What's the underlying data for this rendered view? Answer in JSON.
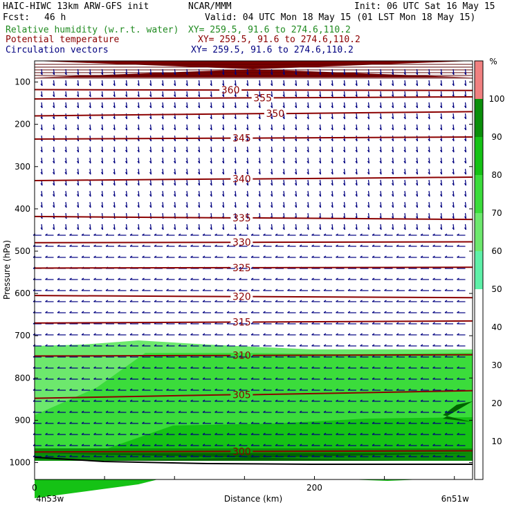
{
  "header": {
    "model": "HAIC-HIWC 13km ARW-GFS init",
    "org": "NCAR/MMM",
    "init": "Init: 06 UTC Sat 16 May 15",
    "fcst_label": "Fcst:",
    "fcst_value": "46 h",
    "valid": "Valid: 04 UTC Mon 18 May 15 (01 LST Mon 18 May 15)",
    "field1": "Relative humidity (w.r.t. water)",
    "field2": "Potential temperature",
    "field3": "Circulation vectors",
    "xy1": "XY= 259.5, 91.6 to 274.6,110.2",
    "xy2": "XY= 259.5, 91.6 to 274.6,110.2",
    "xy3": "XY= 259.5, 91.6 to 274.6,110.2"
  },
  "colors": {
    "rh_scale": [
      "#ffffff",
      "#5ef0a8",
      "#6de86d",
      "#3bdc3b",
      "#15c215",
      "#0a8f0a",
      "#006400",
      "#f08080"
    ],
    "theta_line": "#8b0000",
    "vectors": "#000080",
    "terrain": "#000000"
  },
  "chart_data": {
    "type": "vertical cross-section",
    "xlabel": "Distance (km)",
    "ylabel": "Pressure (hPa)",
    "x_ticks": [
      0,
      200
    ],
    "y_ticks": [
      100,
      200,
      300,
      400,
      500,
      600,
      700,
      800,
      900,
      1000
    ],
    "x_end_labels": {
      "left": "4n53w",
      "right": "6n51w"
    },
    "xlim": [
      0,
      313
    ],
    "ylim_hpa": [
      50,
      1040
    ],
    "colorbar": {
      "unit": "%",
      "ticks": [
        10,
        20,
        30,
        40,
        50,
        60,
        70,
        80,
        90,
        100
      ],
      "bins": [
        {
          "from": 50,
          "to": 60,
          "color": "#5ef0a8"
        },
        {
          "from": 60,
          "to": 70,
          "color": "#6de86d"
        },
        {
          "from": 70,
          "to": 80,
          "color": "#3bdc3b"
        },
        {
          "from": 80,
          "to": 90,
          "color": "#15c215"
        },
        {
          "from": 90,
          "to": 100,
          "color": "#0a8f0a"
        },
        {
          "from": 100,
          "to": 110,
          "color": "#f08080"
        }
      ]
    },
    "theta_contours": [
      {
        "label": "360",
        "x": 140,
        "p": [
          118,
          120
        ]
      },
      {
        "label": "355",
        "x": 163,
        "p": [
          140,
          135
        ]
      },
      {
        "label": "350",
        "x": 172,
        "p": [
          180,
          170
        ]
      },
      {
        "label": "345",
        "x": 148,
        "p": [
          235,
          230
        ]
      },
      {
        "label": "340",
        "x": 148,
        "p": [
          333,
          325
        ]
      },
      {
        "label": "335",
        "x": 148,
        "p": [
          418,
          425
        ]
      },
      {
        "label": "330",
        "x": 148,
        "p": [
          480,
          478
        ]
      },
      {
        "label": "325",
        "x": 148,
        "p": [
          540,
          538
        ]
      },
      {
        "label": "320",
        "x": 148,
        "p": [
          605,
          610
        ]
      },
      {
        "label": "315",
        "x": 148,
        "p": [
          670,
          665
        ]
      },
      {
        "label": "310",
        "x": 148,
        "p": [
          748,
          745
        ]
      },
      {
        "label": "305",
        "x": 148,
        "p": [
          848,
          830
        ]
      },
      {
        "label": "300",
        "x": 148,
        "p": [
          975,
          972
        ]
      }
    ]
  }
}
